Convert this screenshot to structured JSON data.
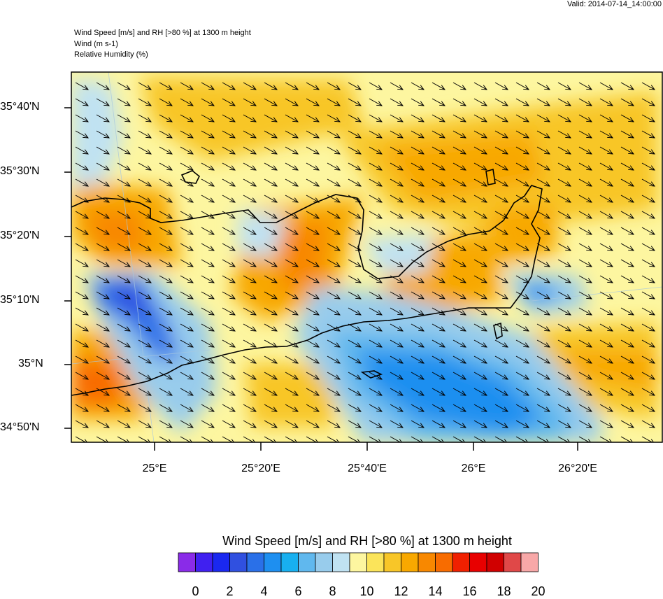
{
  "valid_time": "Valid: 2014-07-14_14:00:00",
  "title_lines": [
    "Wind Speed [m/s] and RH [>80 %] at 1300 m height",
    "Wind   (m s-1)",
    "Relative Humidity   (%)"
  ],
  "lat_labels": [
    "35°40'N",
    "35°30'N",
    "35°20'N",
    "35°10'N",
    "35°N",
    "34°50'N"
  ],
  "lon_labels": [
    "25°E",
    "25°20'E",
    "25°40'E",
    "26°E",
    "26°20'E"
  ],
  "colorbar": {
    "title": "Wind Speed [m/s] and RH [>80 %] at 1300 m height",
    "labels": [
      "0",
      "2",
      "4",
      "6",
      "8",
      "10",
      "12",
      "14",
      "16",
      "18",
      "20"
    ],
    "colors": [
      "#8a2be8",
      "#4020f0",
      "#1a28f0",
      "#3050e0",
      "#2a70e8",
      "#1e8ff0",
      "#18b0f0",
      "#60b8ee",
      "#98ccec",
      "#c0e2f2",
      "#fdf6a0",
      "#fbe45a",
      "#f8c628",
      "#f8a800",
      "#f88800",
      "#f86c00",
      "#f02000",
      "#e80000",
      "#d00000",
      "#e04848",
      "#f8a8a8"
    ]
  }
}
